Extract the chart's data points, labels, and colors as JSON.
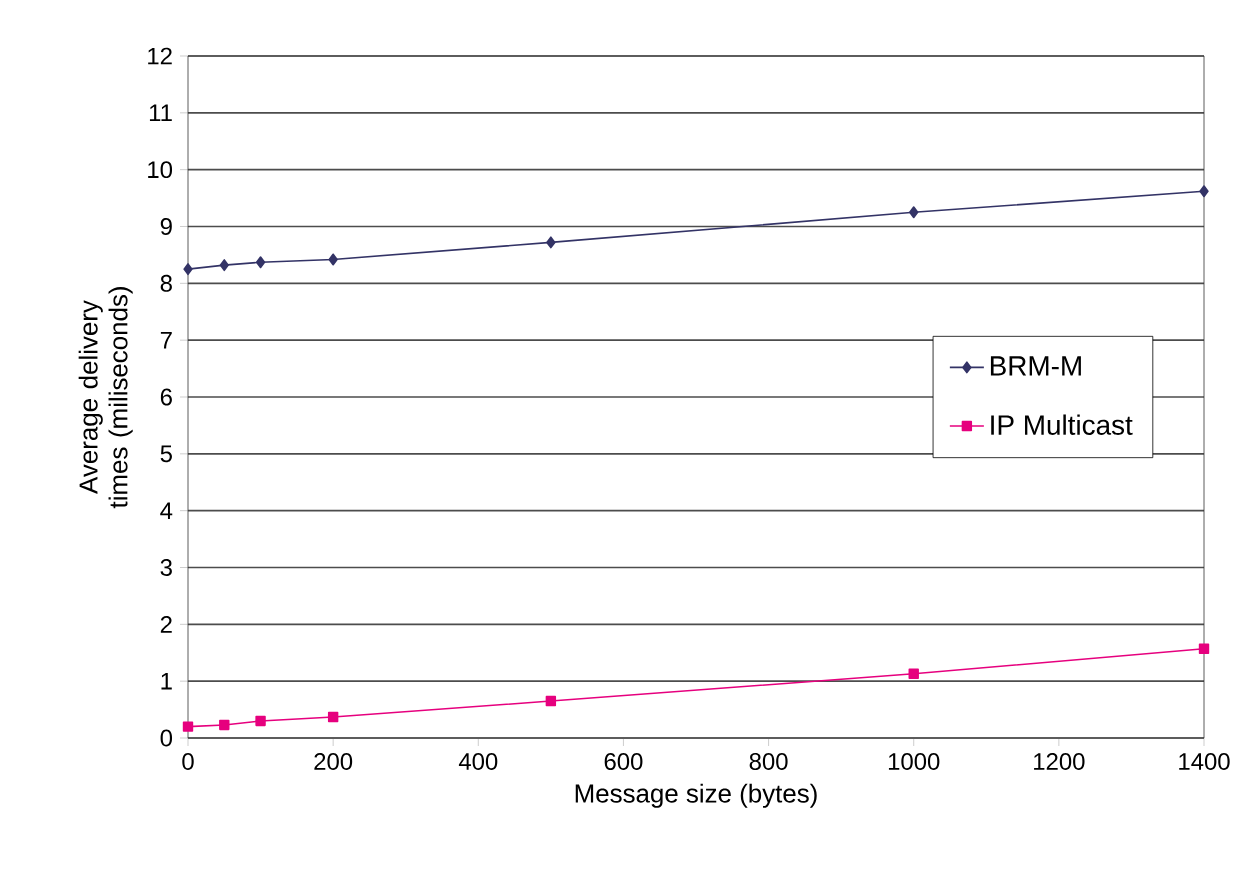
{
  "chart_data": {
    "type": "line",
    "xlabel": "Message size  (bytes)",
    "ylabel": "Average delivery times (miliseconds)",
    "x": [
      0,
      50,
      100,
      200,
      500,
      1000,
      1400
    ],
    "series": [
      {
        "name": "BRM-M",
        "color": "#333366",
        "marker": "diamond",
        "values": [
          8.25,
          8.32,
          8.37,
          8.42,
          8.72,
          9.25,
          9.62
        ]
      },
      {
        "name": "IP Multicast",
        "color": "#e6007e",
        "marker": "square",
        "values": [
          0.2,
          0.23,
          0.3,
          0.37,
          0.65,
          1.13,
          1.57
        ]
      }
    ],
    "xlim": [
      0,
      1400
    ],
    "xticks": [
      0,
      200,
      400,
      600,
      800,
      1000,
      1200,
      1400
    ],
    "ylim": [
      0,
      12
    ],
    "yticks": [
      0,
      1,
      2,
      3,
      4,
      5,
      6,
      7,
      8,
      9,
      10,
      11,
      12
    ],
    "grid": "y",
    "legend": "right"
  }
}
